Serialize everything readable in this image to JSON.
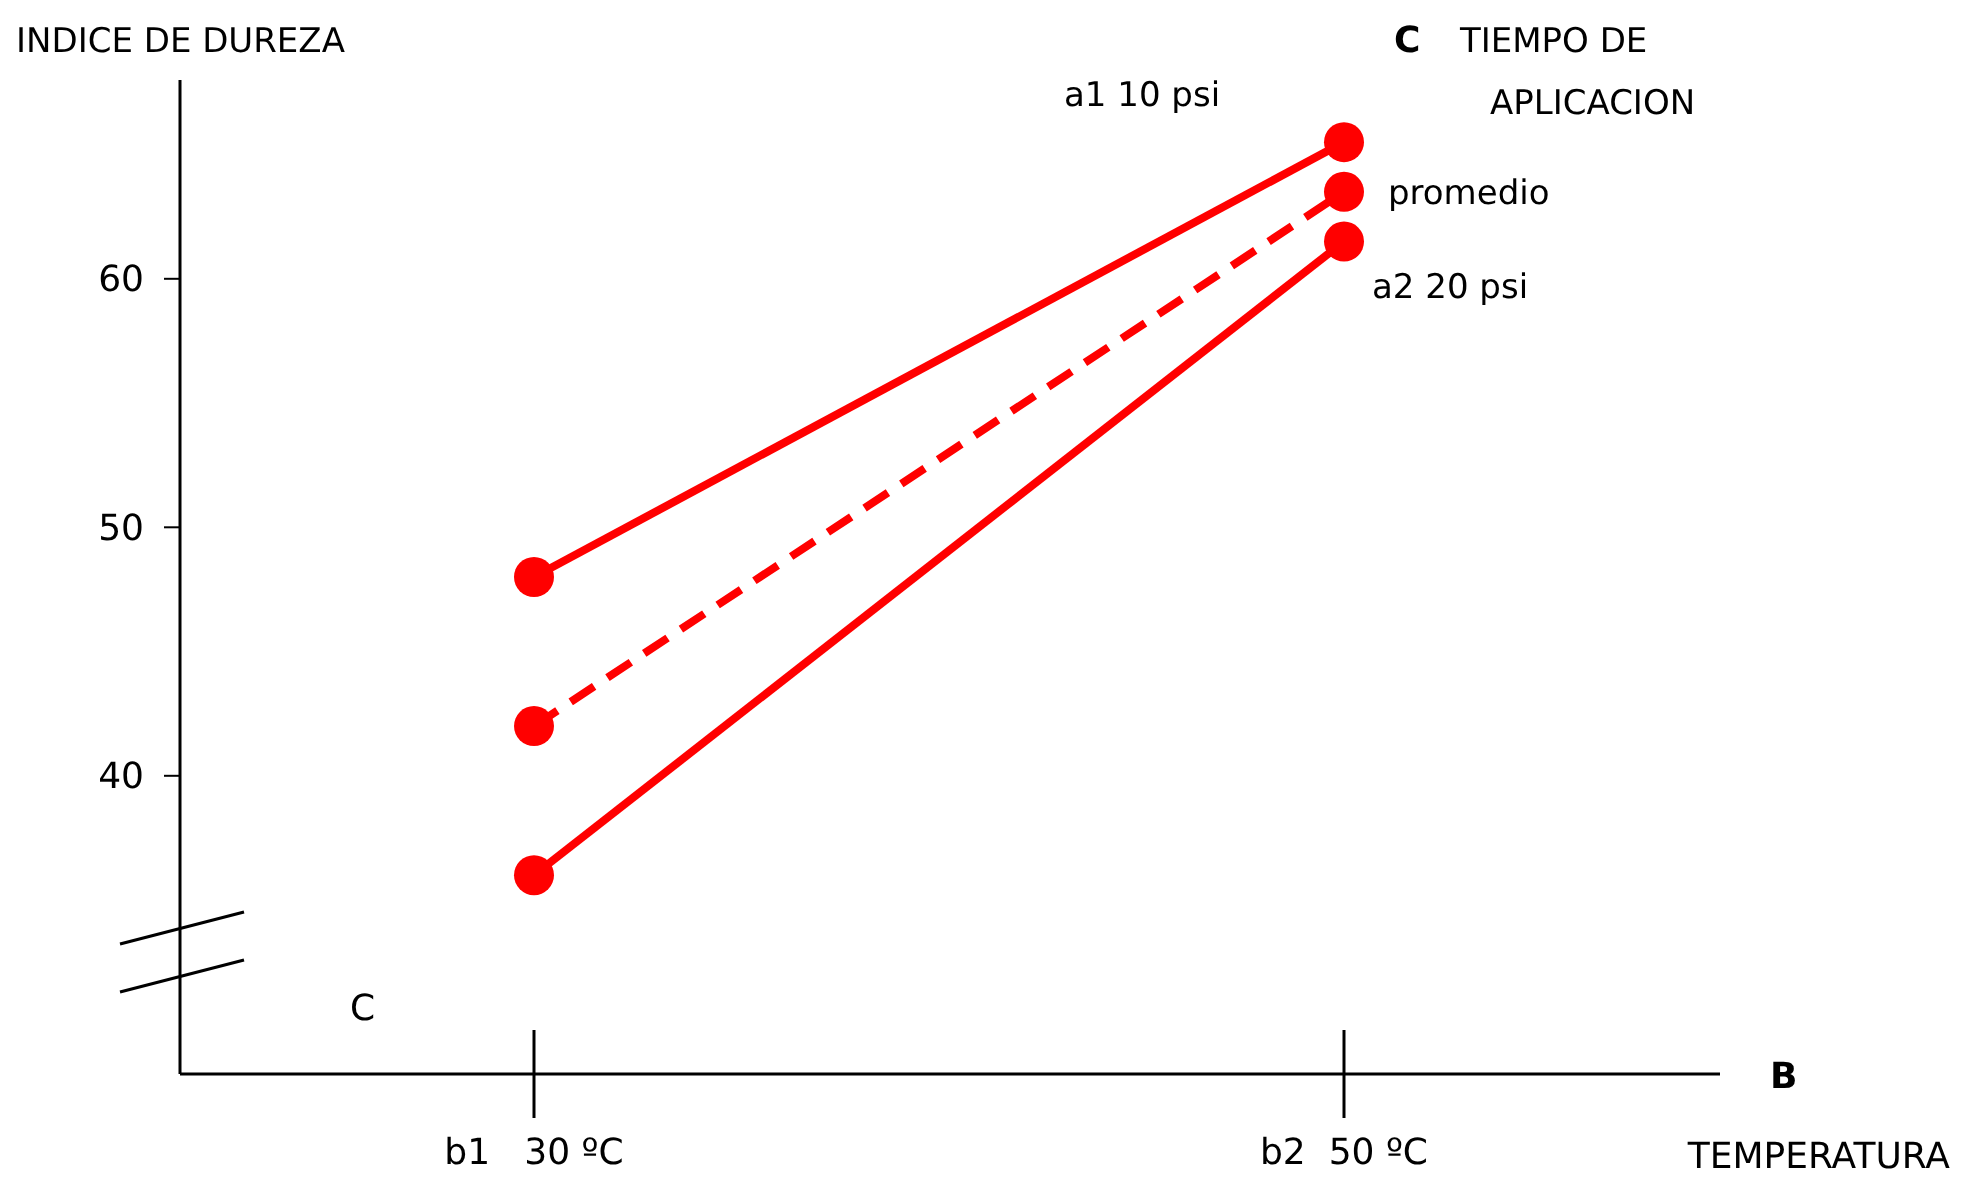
{
  "chart_data": {
    "type": "line",
    "ylabel": "INDICE DE DUREZA",
    "xlabel": "TEMPERATURA",
    "legend_title": "TIEMPO DE APLICACION",
    "categories": [
      "b1   30 ºC",
      "b2  50 ºC"
    ],
    "ylim": [
      28,
      68
    ],
    "yticks": [
      40,
      50,
      60
    ],
    "grid": false,
    "marker": "circle",
    "series": [
      {
        "name": "a1  10 psi",
        "color": "#ff0000",
        "values": [
          48,
          65.5
        ],
        "line_style": "solid"
      },
      {
        "name": "promedio",
        "color": "#ff0000",
        "values": [
          42,
          63.5
        ],
        "line_style": "dashed"
      },
      {
        "name": "a2  20 psi",
        "color": "#ff0000",
        "values": [
          36,
          61.5
        ],
        "line_style": "solid"
      }
    ],
    "annotations": [
      "B",
      "C",
      "C"
    ]
  }
}
